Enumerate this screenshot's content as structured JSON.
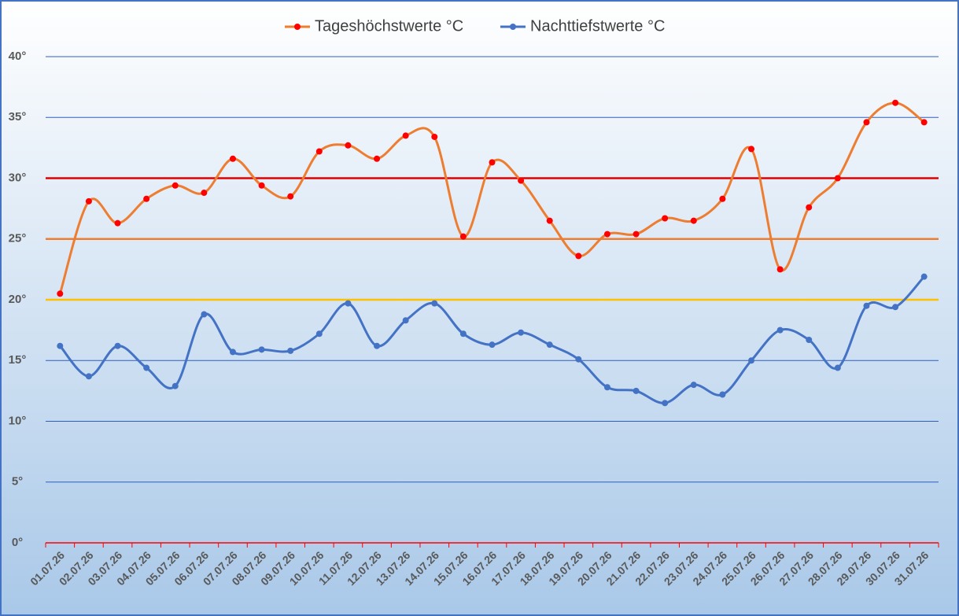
{
  "chart_data": {
    "type": "line",
    "categories": [
      "01.07.26",
      "02.07.26",
      "03.07.26",
      "04.07.26",
      "05.07.26",
      "06.07.26",
      "07.07.26",
      "08.07.26",
      "09.07.26",
      "10.07.26",
      "11.07.26",
      "12.07.26",
      "13.07.26",
      "14.07.26",
      "15.07.26",
      "16.07.26",
      "17.07.26",
      "18.07.26",
      "19.07.26",
      "20.07.26",
      "21.07.26",
      "22.07.26",
      "23.07.26",
      "24.07.26",
      "25.07.26",
      "26.07.26",
      "27.07.26",
      "28.07.26",
      "29.07.26",
      "30.07.26",
      "31.07.26"
    ],
    "series": [
      {
        "name": "Tageshöchstwerte °C",
        "color": "#ed7d31",
        "marker_color": "#ff0000",
        "values": [
          20.5,
          28.1,
          26.3,
          28.3,
          29.4,
          28.8,
          31.6,
          29.4,
          28.5,
          32.2,
          32.7,
          31.6,
          33.5,
          33.4,
          25.2,
          31.3,
          29.8,
          26.5,
          23.6,
          25.4,
          25.4,
          26.7,
          26.5,
          28.3,
          32.4,
          22.5,
          27.6,
          30.0,
          34.6,
          36.2,
          34.6
        ]
      },
      {
        "name": "Nachttiefstwerte °C",
        "color": "#4472c4",
        "marker_color": "#4472c4",
        "values": [
          16.2,
          13.7,
          16.2,
          14.4,
          12.9,
          18.8,
          15.7,
          15.9,
          15.8,
          17.2,
          19.7,
          16.2,
          18.3,
          19.7,
          17.2,
          16.3,
          17.3,
          16.3,
          15.1,
          12.8,
          12.5,
          11.5,
          13.0,
          12.2,
          15.0,
          17.5,
          16.7,
          14.4,
          19.5,
          19.4,
          21.9
        ]
      }
    ],
    "ylim": [
      0,
      40
    ],
    "yticks": [
      {
        "value": 0,
        "label": "0°"
      },
      {
        "value": 5,
        "label": "5°"
      },
      {
        "value": 10,
        "label": "10°"
      },
      {
        "value": 15,
        "label": "15°"
      },
      {
        "value": 20,
        "label": "20°"
      },
      {
        "value": 25,
        "label": "25°"
      },
      {
        "value": 30,
        "label": "30°"
      },
      {
        "value": 35,
        "label": "35°"
      },
      {
        "value": 40,
        "label": "40°"
      }
    ],
    "grid": true,
    "grid_color": "#2e5fbf",
    "axis_color": "#ff0000",
    "reference_lines": [
      {
        "value": 20,
        "color": "#ffc000"
      },
      {
        "value": 25,
        "color": "#ed7d31"
      },
      {
        "value": 30,
        "color": "#e00000"
      }
    ],
    "smooth": true,
    "legend": "top"
  }
}
